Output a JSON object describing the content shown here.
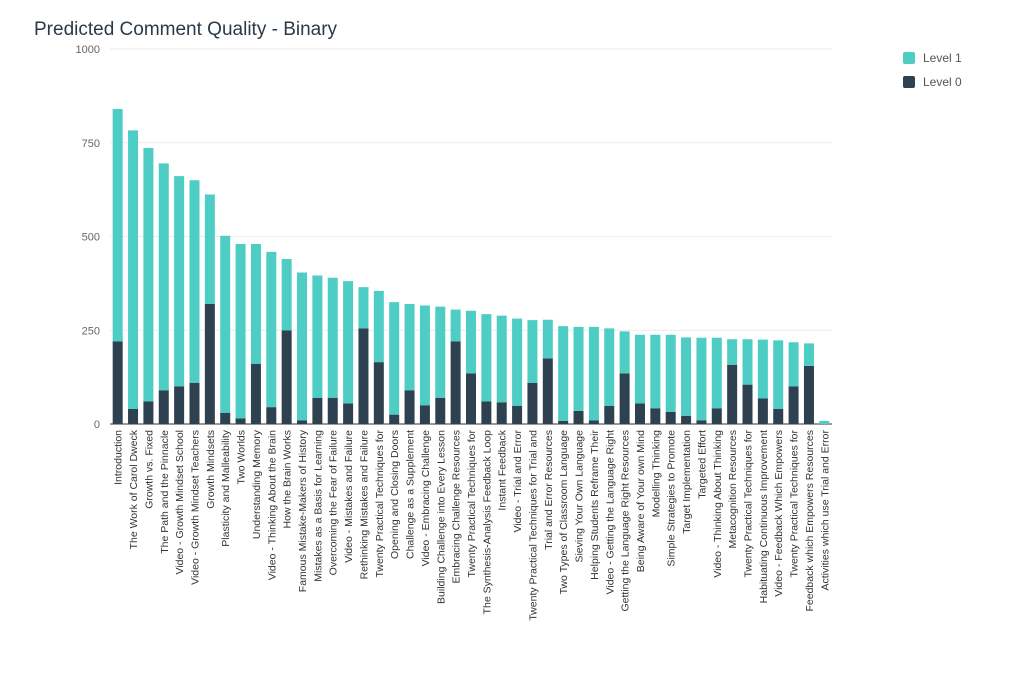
{
  "chart_data": {
    "type": "bar",
    "stacked": true,
    "title": "Predicted Comment Quality - Binary",
    "xlabel": "",
    "ylabel": "",
    "ylim": [
      0,
      1000
    ],
    "yticks": [
      "0",
      "250",
      "500",
      "750",
      "1000"
    ],
    "grid": true,
    "legend_position": "top-right",
    "categories": [
      "Introduction",
      "The Work of Carol Dweck",
      "Growth vs. Fixed",
      "The Path and the Pinnacle",
      "Video - Growth Mindset School",
      "Video - Growth Mindset Teachers",
      "Growth Mindsets",
      "Plasticity and Malleability",
      "Two Worlds",
      "Understanding Memory",
      "Video - Thinking About the Brain",
      "How the Brain Works",
      "Famous Mistake-Makers of History",
      "Mistakes as a Basis for Learning",
      "Overcoming the Fear of Failure",
      "Video - Mistakes and Failure",
      "Rethinking Mistakes and Failure",
      "Twenty Practical Techniques for",
      "Opening and Closing Doors",
      "Challenge as a Supplement",
      "Video - Embracing Challenge",
      "Building Challenge into Every Lesson",
      "Embracing Challenge Resources",
      "Twenty Practical Techniques for",
      "The Synthesis-Analysis Feedback Loop",
      "Instant Feedback",
      "Video - Trial and Error",
      "Twenty Practical Techniques for Trial and",
      "Trial and Error Resources",
      "Two Types of Classroom Language",
      "Sieving Your Own Language",
      "Helping Students Reframe Their",
      "Video - Getting the Language Right",
      "Getting the Language Right Resources",
      "Being Aware of Your own Mind",
      "Modelling Thinking",
      "Simple Strategies to Promote",
      "Target Implementation",
      "Targeted Effort",
      "Video - Thinking About Thinking",
      "Metacognition Resources",
      "Twenty Practical Techniques for",
      "Habituating Continuous Improvement",
      "Video - Feedback Which Empowers",
      "Twenty Practical Techniques for",
      "Feedback which Empowers Resources",
      "Activities which use Trial and Error"
    ],
    "series": [
      {
        "name": "Level 0",
        "color": "#2e4150",
        "values": [
          220,
          40,
          60,
          90,
          100,
          110,
          320,
          30,
          15,
          160,
          45,
          250,
          10,
          70,
          70,
          55,
          255,
          165,
          25,
          90,
          50,
          70,
          220,
          135,
          60,
          58,
          48,
          110,
          175,
          8,
          35,
          10,
          48,
          135,
          55,
          42,
          32,
          22,
          10,
          42,
          158,
          105,
          68,
          40,
          100,
          155,
          0
        ]
      },
      {
        "name": "Level 1",
        "color": "#4ecdc4",
        "values": [
          620,
          743,
          676,
          605,
          561,
          540,
          292,
          472,
          465,
          320,
          414,
          190,
          394,
          326,
          320,
          326,
          110,
          190,
          300,
          230,
          266,
          243,
          85,
          167,
          233,
          231,
          233,
          167,
          103,
          253,
          224,
          249,
          207,
          112,
          183,
          196,
          206,
          209,
          220,
          188,
          68,
          121,
          157,
          183,
          118,
          60,
          8
        ]
      }
    ]
  },
  "legend": {
    "items": [
      {
        "label": "Level 1",
        "color": "#4ecdc4"
      },
      {
        "label": "Level 0",
        "color": "#2e4150"
      }
    ]
  }
}
